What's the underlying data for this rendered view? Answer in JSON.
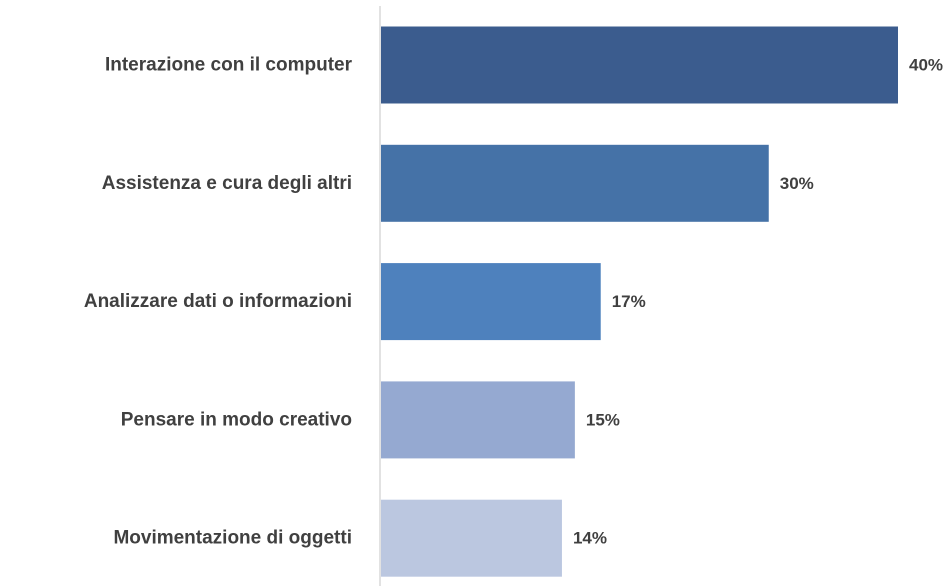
{
  "chart_data": {
    "type": "bar",
    "orientation": "horizontal",
    "title": "",
    "xlabel": "",
    "ylabel": "",
    "categories": [
      "Interazione con il computer",
      "Assistenza e cura degli altri",
      "Analizzare dati o informazioni",
      "Pensare in modo creativo",
      "Movimentazione di oggetti"
    ],
    "values": [
      40,
      30,
      17,
      15,
      14
    ],
    "value_labels": [
      "40%",
      "30%",
      "17%",
      "15%",
      "14%"
    ],
    "unit": "%",
    "xlim": [
      0,
      40
    ],
    "grid": false,
    "legend": "none",
    "colors": [
      "#3B5C8E",
      "#4572A7",
      "#4E81BD",
      "#95A9D1",
      "#BBC7E0"
    ],
    "axis_color": "#D9D9D9"
  }
}
